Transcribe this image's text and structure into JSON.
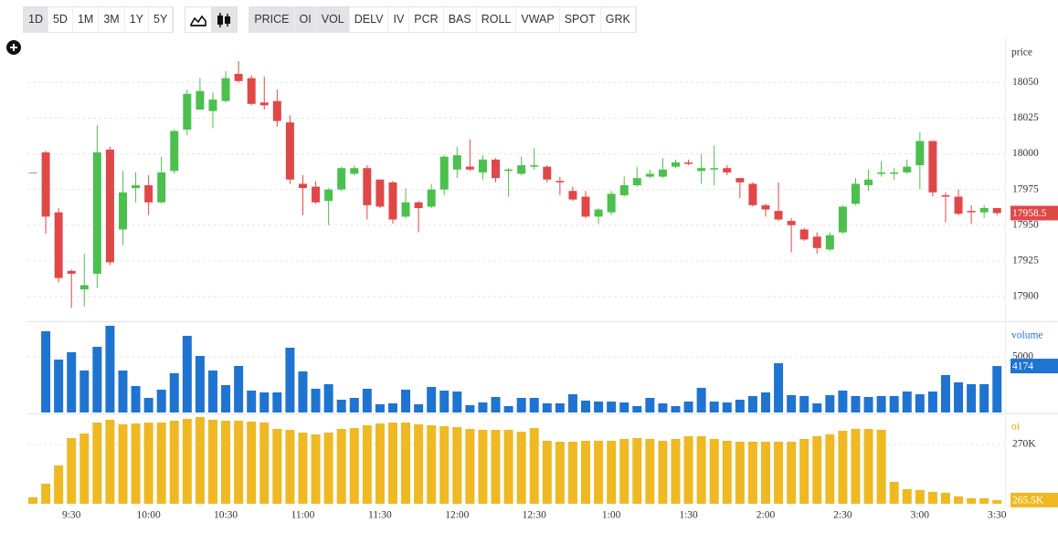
{
  "toolbar": {
    "ranges": [
      {
        "label": "1D",
        "selected": true
      },
      {
        "label": "5D",
        "selected": false
      },
      {
        "label": "1M",
        "selected": false
      },
      {
        "label": "3M",
        "selected": false
      },
      {
        "label": "1Y",
        "selected": false
      },
      {
        "label": "5Y",
        "selected": false
      }
    ],
    "indicators": [
      {
        "label": "PRICE",
        "selected": true
      },
      {
        "label": "OI",
        "selected": true
      },
      {
        "label": "VOL",
        "selected": true
      },
      {
        "label": "DELV",
        "selected": false
      },
      {
        "label": "IV",
        "selected": false
      },
      {
        "label": "PCR",
        "selected": false
      },
      {
        "label": "BAS",
        "selected": false
      },
      {
        "label": "ROLL",
        "selected": false
      },
      {
        "label": "VWAP",
        "selected": false
      },
      {
        "label": "SPOT",
        "selected": false
      },
      {
        "label": "GRK",
        "selected": false
      }
    ]
  },
  "chart_data": [
    {
      "type": "candlestick",
      "label": "price",
      "label_color": "#333333",
      "up_color": "#4cc04c",
      "down_color": "#e04848",
      "ylim": [
        17884,
        18079
      ],
      "yticks": [
        17900,
        17925,
        17950,
        17975,
        18000,
        18025,
        18050
      ],
      "grid": true,
      "open": [
        17987,
        18001,
        17959,
        17918,
        17905,
        17916,
        18003,
        17947,
        17976,
        17978,
        17966,
        17988,
        18017,
        18031,
        18030,
        18037,
        18056,
        18053,
        18036,
        18037,
        18022,
        17979,
        17977,
        17967,
        17975,
        17986,
        17990,
        17982,
        17980,
        17956,
        17966,
        17963,
        17975,
        17989,
        17991,
        17987,
        17996,
        17988,
        17986,
        17991,
        17991,
        17981,
        17974,
        17970,
        17956,
        17959,
        17971,
        17978,
        17984,
        17984,
        17991,
        17994,
        17988,
        17989,
        17990,
        17983,
        17979,
        17964,
        17960,
        17953,
        17947,
        17942,
        17933,
        17945,
        17965,
        17978,
        17986,
        17986,
        17987,
        17992,
        18009,
        17971,
        17970,
        17960,
        17959,
        17962
      ],
      "high": [
        17987,
        18002,
        17962,
        17919,
        17930,
        18020,
        18005,
        17988,
        17987,
        17985,
        17998,
        18017,
        18045,
        18053,
        18043,
        18058,
        18065,
        18055,
        18054,
        18045,
        18027,
        17985,
        17981,
        17976,
        17991,
        17992,
        17992,
        17982,
        17981,
        17976,
        17967,
        17979,
        17999,
        18005,
        18010,
        17999,
        17997,
        17990,
        17998,
        18004,
        17992,
        17984,
        17977,
        17974,
        17962,
        17974,
        17984,
        17991,
        17989,
        17997,
        17996,
        17996,
        18000,
        18006,
        17992,
        17983,
        17980,
        17965,
        17980,
        17955,
        17948,
        17945,
        17945,
        17964,
        17983,
        17989,
        17995,
        17990,
        17996,
        18015,
        18009,
        17973,
        17975,
        17964,
        17964,
        17962
      ],
      "low": [
        17987,
        17944,
        17910,
        17892,
        17893,
        17906,
        17922,
        17936,
        17966,
        17957,
        17965,
        17986,
        18013,
        18031,
        18018,
        18036,
        18050,
        18034,
        18031,
        18019,
        17979,
        17957,
        17965,
        17950,
        17974,
        17985,
        17954,
        17962,
        17951,
        17955,
        17945,
        17962,
        17971,
        17983,
        17988,
        17982,
        17980,
        17970,
        17985,
        17989,
        17980,
        17971,
        17967,
        17955,
        17951,
        17957,
        17970,
        17977,
        17983,
        17983,
        17990,
        17992,
        17979,
        17978,
        17985,
        17969,
        17963,
        17956,
        17953,
        17931,
        17939,
        17930,
        17932,
        17944,
        17964,
        17974,
        17984,
        17982,
        17986,
        17975,
        17970,
        17952,
        17957,
        17951,
        17955,
        17957
      ],
      "close": [
        17987,
        17956,
        17913,
        17916,
        17908,
        18001,
        17924,
        17973,
        17978,
        17966,
        17987,
        18016,
        18042,
        18044,
        18038,
        18053,
        18051,
        18035,
        18034,
        18023,
        17982,
        17976,
        17966,
        17975,
        17990,
        17990,
        17964,
        17963,
        17954,
        17966,
        17962,
        17975,
        17998,
        17999,
        17989,
        17996,
        17983,
        17989,
        17992,
        17992,
        17982,
        17980,
        17968,
        17956,
        17961,
        17972,
        17978,
        17983,
        17986,
        17989,
        17994,
        17993,
        17990,
        17990,
        17987,
        17980,
        17964,
        17961,
        17954,
        17950,
        17940,
        17934,
        17943,
        17963,
        17979,
        17982,
        17987,
        17987,
        17991,
        18009,
        17973,
        17970,
        17958,
        17959,
        17962,
        17958.5
      ]
    },
    {
      "type": "bar",
      "label": "volume",
      "label_color": "#1e74d0",
      "color": "#1e74d0",
      "ylim": [
        0,
        7950
      ],
      "yticks": [
        5000
      ],
      "grid": true,
      "values": [
        null,
        7295,
        4754,
        5410,
        3770,
        5902,
        7787,
        3770,
        2377,
        1311,
        2049,
        3525,
        6885,
        5082,
        3770,
        2459,
        4180,
        1967,
        1803,
        1803,
        5820,
        3689,
        2131,
        2541,
        1148,
        1311,
        2131,
        738,
        820,
        2049,
        738,
        2295,
        1967,
        1885,
        656,
        902,
        1393,
        574,
        1311,
        1311,
        820,
        820,
        1639,
        1066,
        984,
        984,
        902,
        574,
        1311,
        820,
        574,
        984,
        2213,
        984,
        902,
        1148,
        1475,
        1803,
        4426,
        1557,
        1475,
        820,
        1557,
        1967,
        1475,
        1393,
        1475,
        1475,
        1885,
        1639,
        1885,
        3361,
        2705,
        2541,
        2541,
        4174
      ]
    },
    {
      "type": "bar",
      "label": "oi",
      "label_color": "#e0a800",
      "color": "#efb923",
      "ylim": [
        265200,
        272360
      ],
      "yticks": [
        {
          "value": 270000,
          "label": "270K"
        }
      ],
      "grid": true,
      "last_tag": {
        "value": 265500,
        "label": "265.5K"
      },
      "categories": [
        null,
        null,
        null,
        "9:30",
        null,
        null,
        null,
        null,
        null,
        "10:00",
        null,
        null,
        null,
        null,
        null,
        "10:30",
        null,
        null,
        null,
        null,
        null,
        "11:00",
        null,
        null,
        null,
        null,
        null,
        "11:30",
        null,
        null,
        null,
        null,
        null,
        "12:00",
        null,
        null,
        null,
        null,
        null,
        "12:30",
        null,
        null,
        null,
        null,
        null,
        "1:00",
        null,
        null,
        null,
        null,
        null,
        "1:30",
        null,
        null,
        null,
        null,
        null,
        "2:00",
        null,
        null,
        null,
        null,
        null,
        "2:30",
        null,
        null,
        null,
        null,
        null,
        "3:00",
        null,
        null,
        null,
        null,
        null,
        "3:30"
      ],
      "values": [
        265721,
        266828,
        268303,
        270516,
        270885,
        271770,
        271992,
        271623,
        271697,
        271770,
        271770,
        271918,
        272066,
        272213,
        271992,
        271918,
        271918,
        271844,
        271770,
        271254,
        271180,
        270959,
        270811,
        270959,
        271254,
        271328,
        271549,
        271697,
        271770,
        271770,
        271623,
        271549,
        271475,
        271402,
        271254,
        271180,
        271180,
        271180,
        271033,
        271328,
        270295,
        270221,
        270221,
        270295,
        270295,
        270295,
        270442,
        270516,
        270442,
        270295,
        270442,
        270664,
        270664,
        270442,
        270295,
        270221,
        270221,
        270221,
        270221,
        270221,
        270442,
        270664,
        270811,
        271106,
        271254,
        271254,
        271180,
        266975,
        266385,
        266311,
        266164,
        266090,
        265795,
        265648,
        265648,
        265500
      ]
    }
  ]
}
